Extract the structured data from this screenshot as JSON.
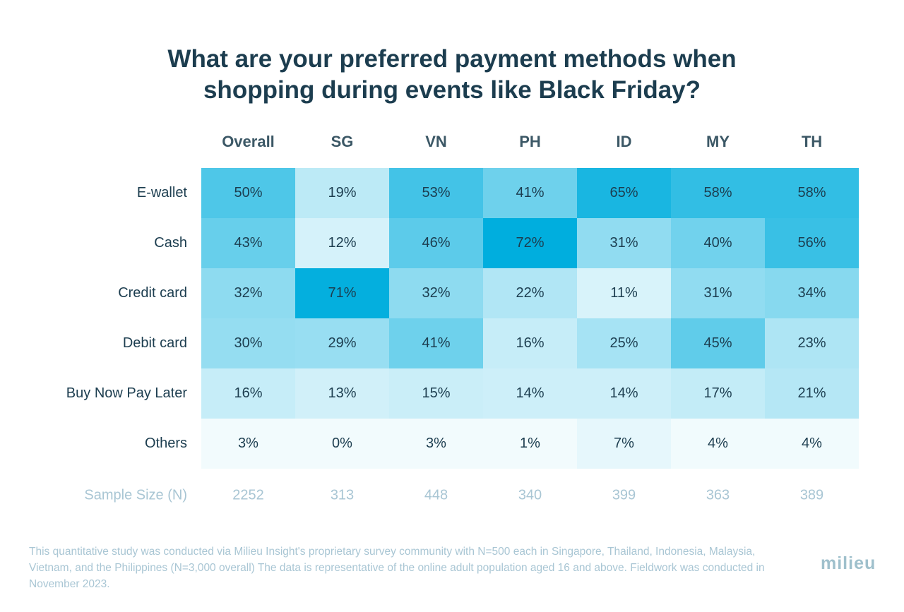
{
  "chart_data": {
    "type": "heatmap",
    "title": [
      "What are your preferred payment methods when",
      "shopping during events like Black Friday?"
    ],
    "columns": [
      "Overall",
      "SG",
      "VN",
      "PH",
      "ID",
      "MY",
      "TH"
    ],
    "rows": [
      "E-wallet",
      "Cash",
      "Credit card",
      "Debit card",
      "Buy Now Pay Later",
      "Others"
    ],
    "unit": "%",
    "values": [
      [
        50,
        19,
        53,
        41,
        65,
        58,
        58
      ],
      [
        43,
        12,
        46,
        72,
        31,
        40,
        56
      ],
      [
        32,
        71,
        32,
        22,
        11,
        31,
        34
      ],
      [
        30,
        29,
        41,
        16,
        25,
        45,
        23
      ],
      [
        16,
        13,
        15,
        14,
        14,
        17,
        21
      ],
      [
        3,
        0,
        3,
        1,
        7,
        4,
        4
      ]
    ],
    "sample_size_label": "Sample Size (N)",
    "sample_sizes": [
      2252,
      313,
      448,
      340,
      399,
      363,
      389
    ],
    "colors": {
      "low": "#ffffff",
      "high": "#00aede",
      "row_label": "#1c3d4f",
      "cell_text": "#1c3d4f",
      "sample_text": "#a9c6d4"
    }
  },
  "footnote": "This quantitative study was conducted via Milieu Insight's proprietary survey community with N=500 each in Singapore, Thailand, Indonesia, Malaysia, Vietnam, and the Philippines (N=3,000 overall) The data is representative of the online adult population aged 16 and above. Fieldwork was conducted in November 2023.",
  "logo_text": "milieu"
}
